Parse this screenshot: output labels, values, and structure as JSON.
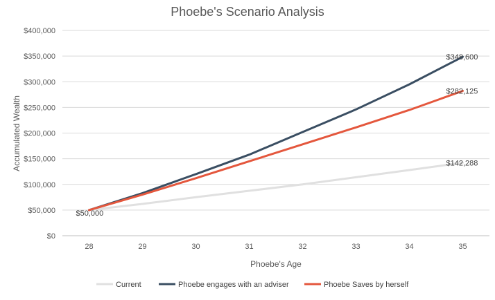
{
  "chart_data": {
    "type": "line",
    "title": "Phoebe's Scenario Analysis",
    "xlabel": "Phoebe's Age",
    "ylabel": "Accumulated Wealth",
    "x": [
      28,
      29,
      30,
      31,
      32,
      33,
      34,
      35
    ],
    "x_tick_labels": [
      "28",
      "29",
      "30",
      "31",
      "32",
      "33",
      "34",
      "35"
    ],
    "ylim": [
      0,
      400000
    ],
    "y_tick_values": [
      0,
      50000,
      100000,
      150000,
      200000,
      250000,
      300000,
      350000,
      400000
    ],
    "y_tick_labels": [
      "$0",
      "$50,000",
      "$100,000",
      "$150,000",
      "$200,000",
      "$250,000",
      "$300,000",
      "$350,000",
      "$400,000"
    ],
    "grid": true,
    "legend_position": "bottom",
    "series": [
      {
        "name": "Current",
        "color": "#e0e0e0",
        "values": [
          50000,
          62000,
          75000,
          87500,
          100000,
          114000,
          128000,
          142288
        ],
        "end_label": "$142,288"
      },
      {
        "name": "Phoebe engages with an adviser",
        "color": "#3a4e62",
        "values": [
          50000,
          83000,
          120000,
          158000,
          202000,
          246000,
          295000,
          348600
        ],
        "end_label": "$348,600"
      },
      {
        "name": "Phoebe Saves by herself",
        "color": "#e4573d",
        "values": [
          50000,
          80000,
          112000,
          145000,
          178000,
          211000,
          245000,
          282125
        ],
        "end_label": "$282,125"
      }
    ],
    "start_label": "$50,000"
  }
}
